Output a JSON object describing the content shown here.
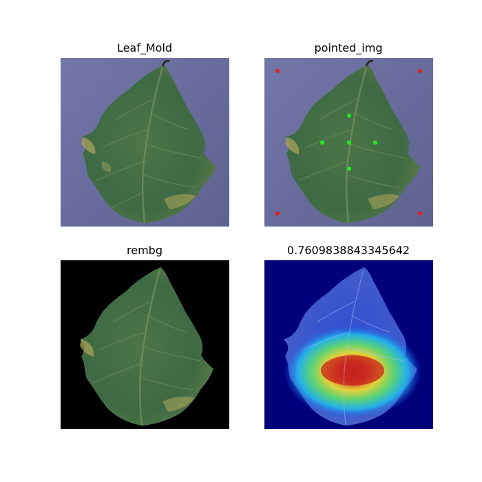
{
  "panels": {
    "original": {
      "title": "Leaf_Mold"
    },
    "pointed": {
      "title": "pointed_img"
    },
    "rembg": {
      "title": "rembg"
    },
    "heatmap": {
      "title": "0.7609838843345642"
    }
  },
  "colors": {
    "background_surface": "#6f72a3",
    "leaf_dark": "#3f6a42",
    "leaf_mid": "#587e4c",
    "leaf_yellow": "#a9a25a",
    "corner_marker": "#e0201c",
    "leaf_marker": "#22ee22",
    "rembg_background": "#000000",
    "heatmap_low": "#00007a",
    "heatmap_high": "#d8231a"
  }
}
